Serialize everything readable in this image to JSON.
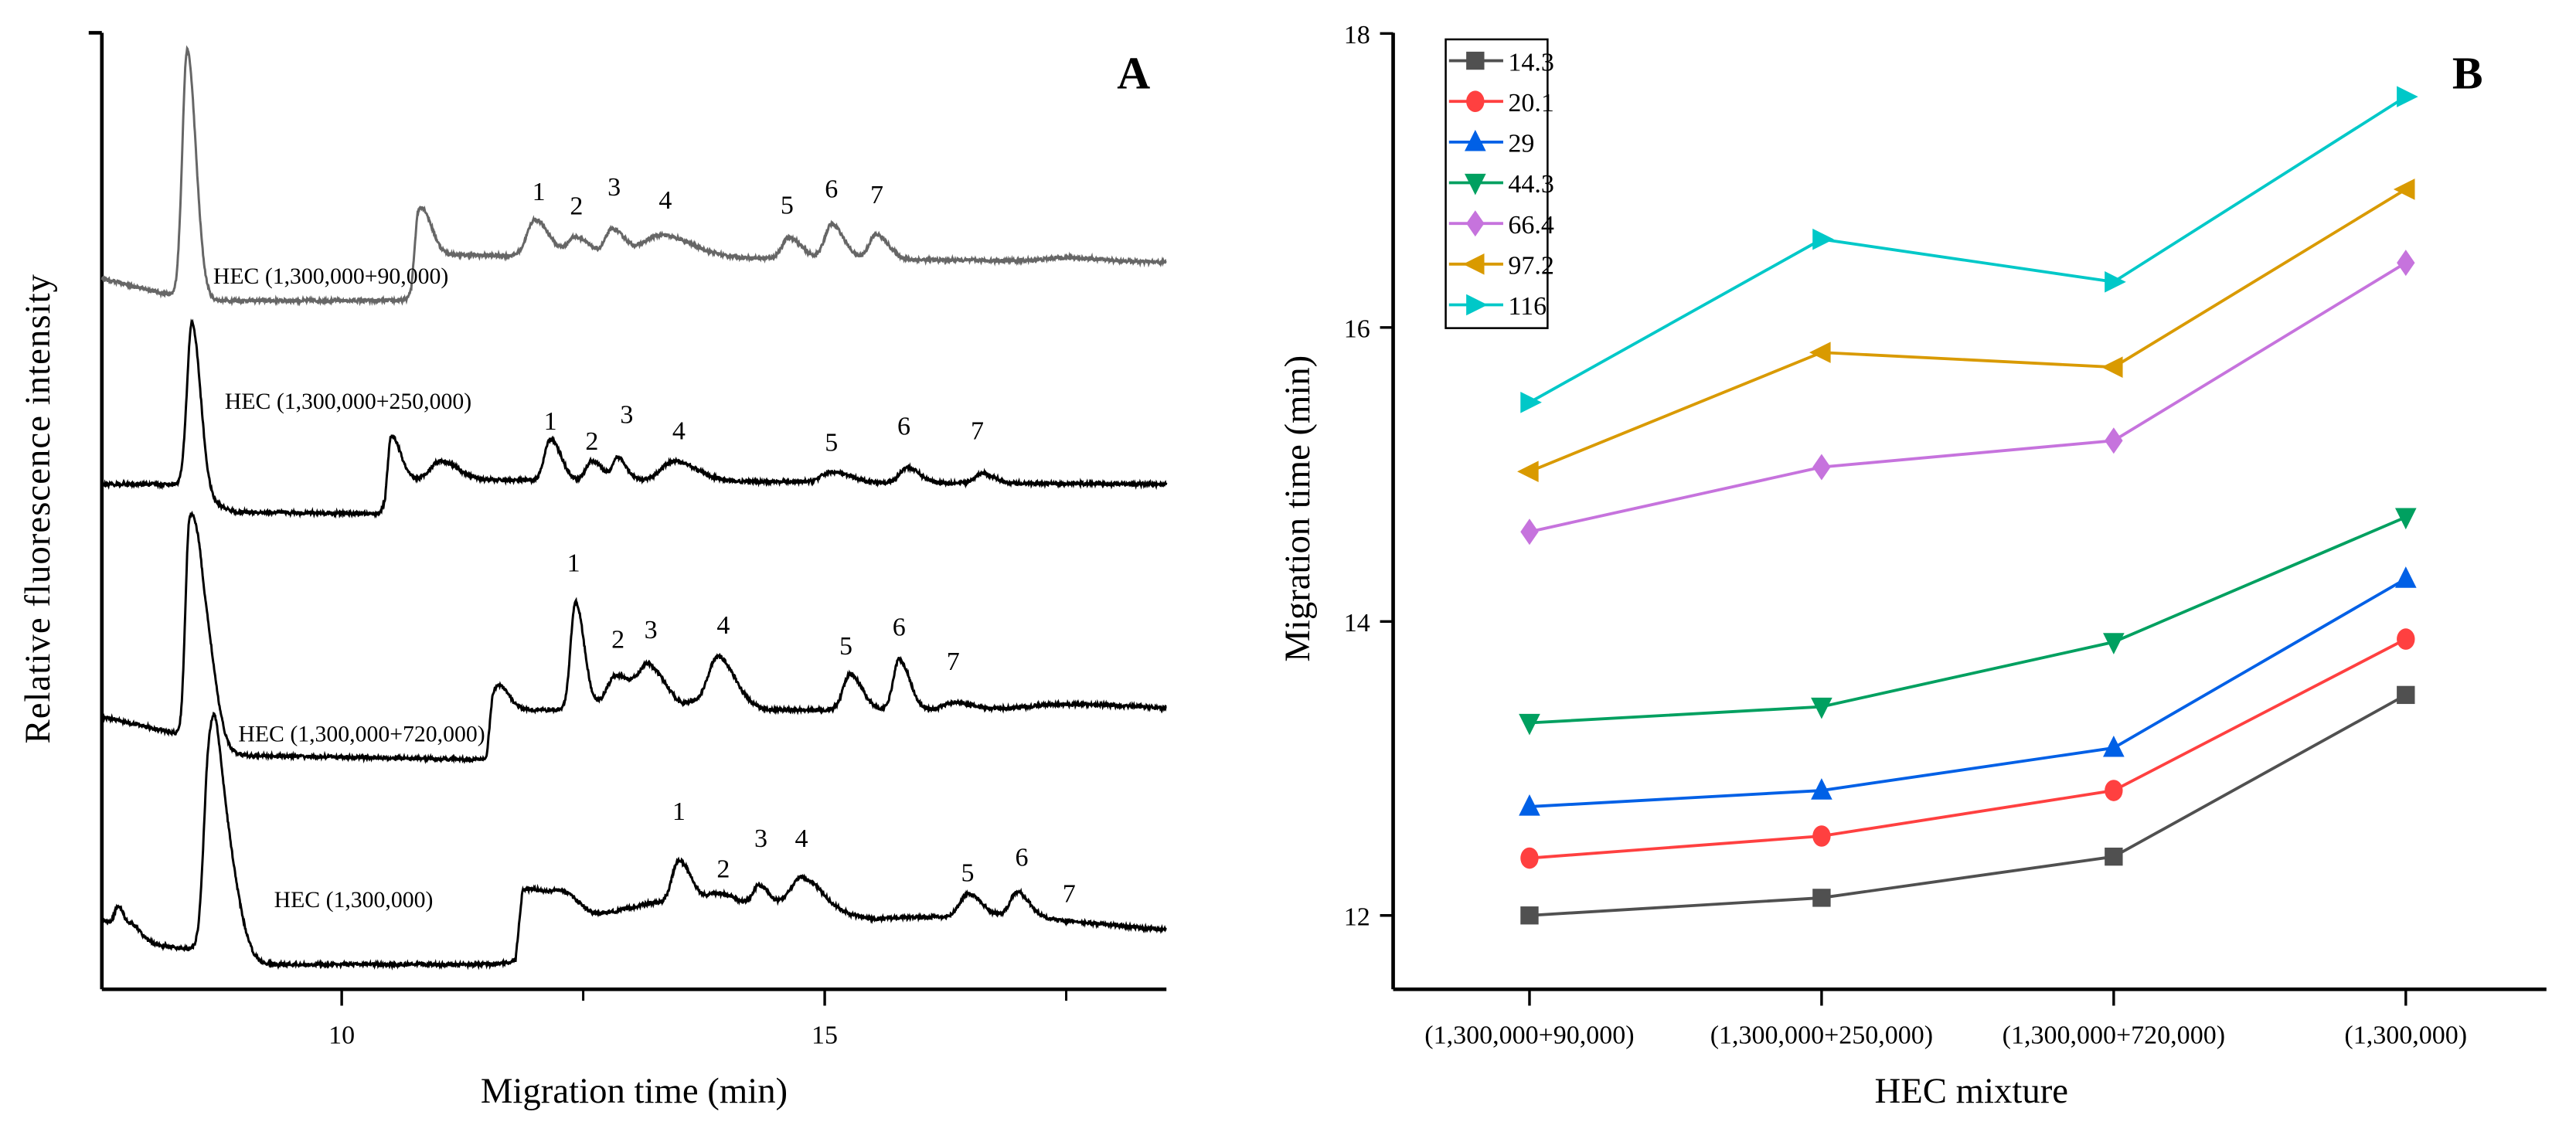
{
  "chart_data": [
    {
      "type": "line",
      "panel_label": "A",
      "title": "",
      "xlabel": "Migration time (min)",
      "ylabel": "Relative fluorescence intensity",
      "xlim": [
        7.52,
        18.54
      ],
      "ylim": [
        0,
        100
      ],
      "xticks_major": [
        10,
        15
      ],
      "xtick_labels": [
        "10",
        "15"
      ],
      "xticks_minor": [
        12.5,
        17.5
      ],
      "grid": false,
      "series": [
        {
          "name": "HEC (1,300,000+90,000)",
          "color": "#666666",
          "name_pos": [
            8.67,
            73.8
          ],
          "baseline": [
            [
              7.52,
              74.3
            ],
            [
              8.3,
              72.4
            ],
            [
              8.5,
              72.0
            ],
            [
              10.72,
              72.0
            ],
            [
              10.78,
              76.8
            ],
            [
              18.54,
              76.0
            ]
          ],
          "peaks": [
            [
              8.4,
              26,
              0.05
            ],
            [
              10.82,
              5,
              0.06
            ],
            [
              12.0,
              3.8,
              0.08
            ],
            [
              12.42,
              2.0,
              0.08
            ],
            [
              12.8,
              2.8,
              0.07
            ],
            [
              13.3,
              2.3,
              0.18
            ],
            [
              14.63,
              2.2,
              0.07
            ],
            [
              15.07,
              3.6,
              0.07
            ],
            [
              15.53,
              2.6,
              0.07
            ],
            [
              17.5,
              0.4,
              0.2
            ]
          ],
          "peak_labels": [
            [
              "1",
              12.04,
              82.5
            ],
            [
              "2",
              12.43,
              81.0
            ],
            [
              "3",
              12.82,
              83.0
            ],
            [
              "4",
              13.35,
              81.6
            ],
            [
              "5",
              14.61,
              81.1
            ],
            [
              "6",
              15.07,
              82.8
            ],
            [
              "7",
              15.54,
              82.2
            ]
          ]
        },
        {
          "name": "HEC (1,300,000+250,000)",
          "color": "#000000",
          "name_pos": [
            8.79,
            60.7
          ],
          "baseline": [
            [
              7.52,
              52.8
            ],
            [
              8.38,
              52.8
            ],
            [
              8.6,
              51.0
            ],
            [
              8.9,
              49.9
            ],
            [
              10.45,
              49.7
            ],
            [
              10.5,
              53.3
            ],
            [
              18.54,
              52.8
            ]
          ],
          "peaks": [
            [
              8.45,
              17.5,
              0.05
            ],
            [
              10.52,
              4.5,
              0.05
            ],
            [
              11.02,
              2.0,
              0.1
            ],
            [
              12.16,
              4.3,
              0.06
            ],
            [
              12.59,
              2.1,
              0.06
            ],
            [
              12.86,
              2.4,
              0.05
            ],
            [
              13.44,
              2.1,
              0.13
            ],
            [
              15.07,
              1.1,
              0.1
            ],
            [
              15.85,
              1.6,
              0.07
            ],
            [
              16.63,
              1.0,
              0.07
            ]
          ],
          "peak_labels": [
            [
              "1",
              12.16,
              58.5
            ],
            [
              "2",
              12.59,
              56.4
            ],
            [
              "3",
              12.95,
              59.2
            ],
            [
              "4",
              13.49,
              57.5
            ],
            [
              "5",
              15.07,
              56.3
            ],
            [
              "6",
              15.82,
              58.0
            ],
            [
              "7",
              16.58,
              57.5
            ]
          ]
        },
        {
          "name": "HEC (1,300,000+720,000)",
          "color": "#000000",
          "name_pos": [
            8.93,
            25.9
          ],
          "baseline": [
            [
              7.52,
              28.5
            ],
            [
              8.35,
              26.6
            ],
            [
              8.7,
              24.5
            ],
            [
              11.5,
              24.0
            ],
            [
              11.56,
              29.2
            ],
            [
              18.54,
              29.2
            ]
          ],
          "peaks": [
            [
              8.42,
              20,
              0.04
            ],
            [
              8.55,
              15,
              0.07
            ],
            [
              11.62,
              2.6,
              0.06
            ],
            [
              12.42,
              11.3,
              0.05
            ],
            [
              12.84,
              3.6,
              0.1
            ],
            [
              13.18,
              4.2,
              0.1
            ],
            [
              13.62,
              0.6,
              0.05
            ],
            [
              13.89,
              5.6,
              0.1
            ],
            [
              15.26,
              3.7,
              0.07
            ],
            [
              15.77,
              5.3,
              0.06
            ],
            [
              16.33,
              0.8,
              0.1
            ],
            [
              17.5,
              0.6,
              0.4
            ]
          ],
          "peak_labels": [
            [
              "1",
              12.4,
              43.7
            ],
            [
              "2",
              12.86,
              35.7
            ],
            [
              "3",
              13.2,
              36.7
            ],
            [
              "4",
              13.95,
              37.2
            ],
            [
              "5",
              15.22,
              35.0
            ],
            [
              "6",
              15.77,
              37.0
            ],
            [
              "7",
              16.33,
              33.4
            ]
          ]
        },
        {
          "name": "HEC (1,300,000)",
          "color": "#000000",
          "name_pos": [
            9.3,
            8.6
          ],
          "baseline": [
            [
              7.52,
              7.4
            ],
            [
              7.8,
              5.5
            ],
            [
              8.16,
              4.5
            ],
            [
              8.6,
              4.0
            ],
            [
              9.1,
              2.6
            ],
            [
              11.8,
              2.6
            ],
            [
              11.87,
              9.5
            ],
            [
              12.35,
              8.5
            ],
            [
              12.6,
              7.6
            ],
            [
              13.2,
              9.0
            ],
            [
              14.0,
              9.0
            ],
            [
              15.5,
              7.4
            ],
            [
              16.2,
              7.6
            ],
            [
              17.0,
              7.6
            ],
            [
              18.54,
              6.2
            ]
          ],
          "peaks": [
            [
              7.69,
              2.5,
              0.04
            ],
            [
              7.85,
              1.2,
              0.04
            ],
            [
              8.62,
              13,
              0.05
            ],
            [
              8.72,
              16,
              0.09
            ],
            [
              12.0,
              1.2,
              0.15
            ],
            [
              12.3,
              1.0,
              0.1
            ],
            [
              13.49,
              4.5,
              0.07
            ],
            [
              13.89,
              1.0,
              0.1
            ],
            [
              14.32,
              2.2,
              0.06
            ],
            [
              14.76,
              3.5,
              0.12
            ],
            [
              16.48,
              2.4,
              0.08
            ],
            [
              16.99,
              2.6,
              0.07
            ]
          ],
          "peak_labels": [
            [
              "1",
              13.49,
              17.7
            ],
            [
              "2",
              13.95,
              11.7
            ],
            [
              "3",
              14.34,
              14.9
            ],
            [
              "4",
              14.76,
              14.9
            ],
            [
              "5",
              16.48,
              11.3
            ],
            [
              "6",
              17.04,
              12.9
            ],
            [
              "7",
              17.53,
              9.1
            ]
          ]
        }
      ]
    },
    {
      "type": "line",
      "panel_label": "B",
      "title": "",
      "xlabel": "HEC mixture",
      "ylabel": "Migration time (min)",
      "categories": [
        "(1,300,000+90,000)",
        "(1,300,000+250,000)",
        "(1,300,000+720,000)",
        "(1,300,000)"
      ],
      "ylim": [
        11.5,
        18
      ],
      "yticks": [
        12,
        14,
        16,
        18
      ],
      "ytick_labels": [
        "12",
        "14",
        "16",
        "18"
      ],
      "grid": false,
      "legend": "top-left",
      "series": [
        {
          "name": "14.3",
          "color": "#505050",
          "marker": "square",
          "values": [
            12.0,
            12.12,
            12.4,
            13.5
          ]
        },
        {
          "name": "20.1",
          "color": "#ff4040",
          "marker": "circle",
          "values": [
            12.39,
            12.54,
            12.85,
            13.88
          ]
        },
        {
          "name": "29",
          "color": "#0060e6",
          "marker": "triangle-up",
          "values": [
            12.74,
            12.85,
            13.14,
            14.29
          ]
        },
        {
          "name": "44.3",
          "color": "#00a060",
          "marker": "triangle-down",
          "values": [
            13.31,
            13.42,
            13.86,
            14.71
          ]
        },
        {
          "name": "66.4",
          "color": "#c673dd",
          "marker": "diamond",
          "values": [
            14.61,
            15.05,
            15.23,
            16.44
          ]
        },
        {
          "name": "97.2",
          "color": "#d99a00",
          "marker": "triangle-left",
          "values": [
            15.02,
            15.83,
            15.73,
            16.94
          ]
        },
        {
          "name": "116",
          "color": "#00c8c8",
          "marker": "triangle-right",
          "values": [
            15.49,
            16.6,
            16.31,
            17.57
          ]
        }
      ]
    }
  ]
}
